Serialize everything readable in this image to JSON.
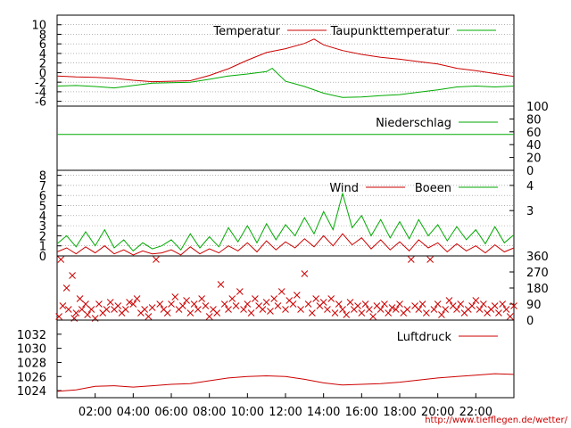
{
  "chart_data": {
    "type": "line",
    "x_tick_labels": [
      "02:00",
      "04:00",
      "06:00",
      "08:00",
      "10:00",
      "12:00",
      "14:00",
      "16:00",
      "18:00",
      "20:00",
      "22:00"
    ],
    "footer_url": "http://www.tiefflegen.de/wetter/",
    "panels": [
      {
        "id": "temperature",
        "y_range": [
          -7,
          12
        ],
        "y_ticks_left": [
          "10",
          "8",
          "6",
          "4",
          "2",
          "0",
          "-2",
          "-4",
          "-6"
        ],
        "y_tick_values": [
          10,
          8,
          6,
          4,
          2,
          0,
          -2,
          -4,
          -6
        ],
        "grid": true,
        "series": [
          {
            "name": "Temperatur",
            "color": "#cc0000",
            "x": [
              0.0,
              1.0,
              2.0,
              3.0,
              4.0,
              5.0,
              6.0,
              7.0,
              8.0,
              9.0,
              10.0,
              11.0,
              12.0,
              13.0,
              13.5,
              14.0,
              15.0,
              16.0,
              17.0,
              18.0,
              19.0,
              20.0,
              21.0,
              22.0,
              23.0,
              24.0
            ],
            "values": [
              -0.7,
              -0.9,
              -1.0,
              -1.2,
              -1.6,
              -1.9,
              -1.8,
              -1.7,
              -0.6,
              0.8,
              2.6,
              4.2,
              5.0,
              6.1,
              7.0,
              5.8,
              4.6,
              3.8,
              3.2,
              2.8,
              2.3,
              1.8,
              0.9,
              0.4,
              -0.2,
              -0.8
            ]
          },
          {
            "name": "Taupunkttemperatur",
            "color": "#00aa00",
            "x": [
              0.0,
              1.0,
              2.0,
              3.0,
              4.0,
              5.0,
              6.0,
              7.0,
              8.0,
              9.0,
              10.0,
              11.0,
              11.3,
              12.0,
              13.0,
              14.0,
              15.0,
              16.0,
              17.0,
              18.0,
              19.0,
              20.0,
              21.0,
              22.0,
              23.0,
              24.0
            ],
            "values": [
              -2.8,
              -2.7,
              -2.9,
              -3.2,
              -2.7,
              -2.2,
              -2.1,
              -2.0,
              -1.4,
              -0.7,
              -0.3,
              0.2,
              0.9,
              -1.8,
              -2.9,
              -4.3,
              -5.2,
              -5.1,
              -4.8,
              -4.6,
              -4.1,
              -3.6,
              -3.0,
              -2.8,
              -3.0,
              -2.8
            ]
          }
        ]
      },
      {
        "id": "precipitation",
        "y_range": [
          0,
          100
        ],
        "y_ticks_right": [
          "100",
          "80",
          "60",
          "40",
          "20",
          "0"
        ],
        "y_tick_values": [
          100,
          80,
          60,
          40,
          20,
          0
        ],
        "grid": false,
        "series": [
          {
            "name": "Niederschlag",
            "color": "#00aa00",
            "x": [
              0,
              24
            ],
            "values": [
              56,
              56
            ]
          }
        ]
      },
      {
        "id": "wind",
        "y_range": [
          0,
          8.5
        ],
        "y_ticks_left": [
          "8",
          "7",
          "6",
          "5",
          "4",
          "3",
          "2",
          "1",
          "0"
        ],
        "y_tick_values": [
          8,
          7,
          6,
          5,
          4,
          3,
          2,
          1,
          0
        ],
        "y_ticks_right": [
          "4",
          "3"
        ],
        "y_tick_right_values": [
          7,
          4.5
        ],
        "grid": true,
        "series": [
          {
            "name": "Wind",
            "color": "#cc0000",
            "x": [
              0.0,
              0.5,
              1.0,
              1.5,
              2.0,
              2.5,
              3.0,
              3.5,
              4.0,
              4.5,
              5.0,
              5.5,
              6.0,
              6.5,
              7.0,
              7.5,
              8.0,
              8.5,
              9.0,
              9.5,
              10.0,
              10.5,
              11.0,
              11.5,
              12.0,
              12.5,
              13.0,
              13.5,
              14.0,
              14.5,
              15.0,
              15.5,
              16.0,
              16.5,
              17.0,
              17.5,
              18.0,
              18.5,
              19.0,
              19.5,
              20.0,
              20.5,
              21.0,
              21.5,
              22.0,
              22.5,
              23.0,
              23.5,
              24.0
            ],
            "values": [
              0.4,
              0.8,
              0.2,
              0.9,
              0.3,
              1.0,
              0.2,
              0.6,
              0.1,
              0.5,
              0.2,
              0.3,
              0.6,
              0.1,
              0.9,
              0.2,
              0.7,
              0.3,
              1.0,
              0.5,
              1.3,
              0.4,
              1.5,
              0.6,
              1.4,
              0.8,
              1.7,
              0.9,
              2.0,
              1.0,
              2.2,
              1.1,
              1.8,
              0.7,
              1.6,
              0.6,
              1.4,
              0.5,
              1.6,
              0.8,
              1.3,
              0.4,
              1.2,
              0.5,
              1.0,
              0.3,
              1.1,
              0.4,
              0.8
            ]
          },
          {
            "name": "Boeen",
            "color": "#00aa00",
            "x": [
              0.0,
              0.5,
              1.0,
              1.5,
              2.0,
              2.5,
              3.0,
              3.5,
              4.0,
              4.5,
              5.0,
              5.5,
              6.0,
              6.5,
              7.0,
              7.5,
              8.0,
              8.5,
              9.0,
              9.5,
              10.0,
              10.5,
              11.0,
              11.5,
              12.0,
              12.5,
              13.0,
              13.5,
              14.0,
              14.5,
              15.0,
              15.5,
              16.0,
              16.5,
              17.0,
              17.5,
              18.0,
              18.5,
              19.0,
              19.5,
              20.0,
              20.5,
              21.0,
              21.5,
              22.0,
              22.5,
              23.0,
              23.5,
              24.0
            ],
            "values": [
              1.2,
              2.0,
              0.9,
              2.4,
              1.0,
              2.6,
              0.8,
              1.6,
              0.5,
              1.3,
              0.7,
              1.0,
              1.6,
              0.6,
              2.2,
              0.8,
              1.9,
              0.9,
              2.8,
              1.4,
              3.0,
              1.3,
              3.2,
              1.6,
              3.1,
              2.0,
              3.8,
              2.2,
              4.4,
              2.6,
              6.2,
              2.8,
              4.0,
              2.0,
              3.6,
              1.8,
              3.4,
              1.7,
              3.6,
              2.0,
              3.1,
              1.5,
              2.9,
              1.6,
              2.6,
              1.2,
              2.9,
              1.3,
              2.1
            ]
          }
        ]
      },
      {
        "id": "wind-direction",
        "type": "scatter",
        "y_range": [
          0,
          360
        ],
        "y_ticks_right": [
          "360",
          "270",
          "180",
          "90",
          "0"
        ],
        "y_tick_values": [
          360,
          270,
          180,
          90,
          0
        ],
        "grid": false,
        "marker": "x",
        "color": "#cc0000",
        "points": [
          [
            0.1,
            20
          ],
          [
            0.2,
            340
          ],
          [
            0.3,
            80
          ],
          [
            0.5,
            180
          ],
          [
            0.6,
            60
          ],
          [
            0.8,
            250
          ],
          [
            0.9,
            10
          ],
          [
            1.0,
            40
          ],
          [
            1.2,
            120
          ],
          [
            1.3,
            60
          ],
          [
            1.5,
            90
          ],
          [
            1.6,
            30
          ],
          [
            1.8,
            60
          ],
          [
            2.0,
            10
          ],
          [
            2.2,
            90
          ],
          [
            2.4,
            40
          ],
          [
            2.6,
            60
          ],
          [
            2.8,
            100
          ],
          [
            3.0,
            60
          ],
          [
            3.2,
            80
          ],
          [
            3.4,
            40
          ],
          [
            3.6,
            60
          ],
          [
            3.8,
            100
          ],
          [
            4.0,
            90
          ],
          [
            4.2,
            120
          ],
          [
            4.4,
            40
          ],
          [
            4.6,
            60
          ],
          [
            4.8,
            20
          ],
          [
            5.0,
            70
          ],
          [
            5.2,
            340
          ],
          [
            5.4,
            90
          ],
          [
            5.6,
            60
          ],
          [
            5.8,
            40
          ],
          [
            6.0,
            90
          ],
          [
            6.2,
            130
          ],
          [
            6.4,
            60
          ],
          [
            6.6,
            80
          ],
          [
            6.8,
            110
          ],
          [
            7.0,
            40
          ],
          [
            7.2,
            90
          ],
          [
            7.4,
            60
          ],
          [
            7.6,
            120
          ],
          [
            7.8,
            80
          ],
          [
            8.0,
            20
          ],
          [
            8.2,
            60
          ],
          [
            8.4,
            40
          ],
          [
            8.6,
            200
          ],
          [
            8.8,
            90
          ],
          [
            9.0,
            60
          ],
          [
            9.2,
            120
          ],
          [
            9.4,
            80
          ],
          [
            9.6,
            160
          ],
          [
            9.8,
            60
          ],
          [
            10.0,
            90
          ],
          [
            10.2,
            40
          ],
          [
            10.4,
            120
          ],
          [
            10.6,
            80
          ],
          [
            10.8,
            60
          ],
          [
            11.0,
            100
          ],
          [
            11.2,
            50
          ],
          [
            11.4,
            120
          ],
          [
            11.6,
            80
          ],
          [
            11.8,
            160
          ],
          [
            12.0,
            60
          ],
          [
            12.2,
            110
          ],
          [
            12.4,
            90
          ],
          [
            12.6,
            140
          ],
          [
            12.8,
            60
          ],
          [
            13.0,
            260
          ],
          [
            13.2,
            90
          ],
          [
            13.4,
            40
          ],
          [
            13.6,
            120
          ],
          [
            13.8,
            80
          ],
          [
            14.0,
            100
          ],
          [
            14.2,
            60
          ],
          [
            14.4,
            120
          ],
          [
            14.6,
            40
          ],
          [
            14.8,
            90
          ],
          [
            15.0,
            60
          ],
          [
            15.2,
            30
          ],
          [
            15.4,
            100
          ],
          [
            15.6,
            60
          ],
          [
            15.8,
            80
          ],
          [
            16.0,
            40
          ],
          [
            16.2,
            90
          ],
          [
            16.4,
            60
          ],
          [
            16.6,
            20
          ],
          [
            16.8,
            80
          ],
          [
            17.0,
            60
          ],
          [
            17.2,
            90
          ],
          [
            17.4,
            40
          ],
          [
            17.6,
            70
          ],
          [
            17.8,
            60
          ],
          [
            18.0,
            90
          ],
          [
            18.2,
            40
          ],
          [
            18.4,
            60
          ],
          [
            18.6,
            340
          ],
          [
            18.8,
            80
          ],
          [
            19.0,
            60
          ],
          [
            19.2,
            90
          ],
          [
            19.4,
            40
          ],
          [
            19.6,
            340
          ],
          [
            19.8,
            60
          ],
          [
            20.0,
            90
          ],
          [
            20.2,
            30
          ],
          [
            20.4,
            60
          ],
          [
            20.6,
            110
          ],
          [
            20.8,
            80
          ],
          [
            21.0,
            60
          ],
          [
            21.2,
            90
          ],
          [
            21.4,
            40
          ],
          [
            21.6,
            60
          ],
          [
            21.8,
            80
          ],
          [
            22.0,
            110
          ],
          [
            22.2,
            60
          ],
          [
            22.4,
            90
          ],
          [
            22.6,
            40
          ],
          [
            22.8,
            60
          ],
          [
            23.0,
            80
          ],
          [
            23.2,
            40
          ],
          [
            23.4,
            90
          ],
          [
            23.6,
            60
          ],
          [
            23.8,
            20
          ],
          [
            24.0,
            80
          ]
        ]
      },
      {
        "id": "pressure",
        "y_range": [
          1023,
          1034
        ],
        "y_ticks_left": [
          "1032",
          "1030",
          "1028",
          "1026",
          "1024"
        ],
        "y_tick_values": [
          1032,
          1030,
          1028,
          1026,
          1024
        ],
        "grid": false,
        "series": [
          {
            "name": "Luftdruck",
            "color": "#cc0000",
            "x": [
              0.0,
              1.0,
              2.0,
              3.0,
              4.0,
              5.0,
              6.0,
              7.0,
              8.0,
              9.0,
              10.0,
              11.0,
              12.0,
              13.0,
              14.0,
              15.0,
              16.0,
              17.0,
              18.0,
              19.0,
              20.0,
              21.0,
              22.0,
              23.0,
              24.0
            ],
            "values": [
              1023.9,
              1024.1,
              1024.6,
              1024.7,
              1024.5,
              1024.7,
              1024.9,
              1025.0,
              1025.4,
              1025.8,
              1026.0,
              1026.1,
              1026.0,
              1025.6,
              1025.1,
              1024.8,
              1024.9,
              1025.0,
              1025.2,
              1025.5,
              1025.8,
              1026.0,
              1026.2,
              1026.4,
              1026.3
            ]
          }
        ]
      }
    ]
  }
}
